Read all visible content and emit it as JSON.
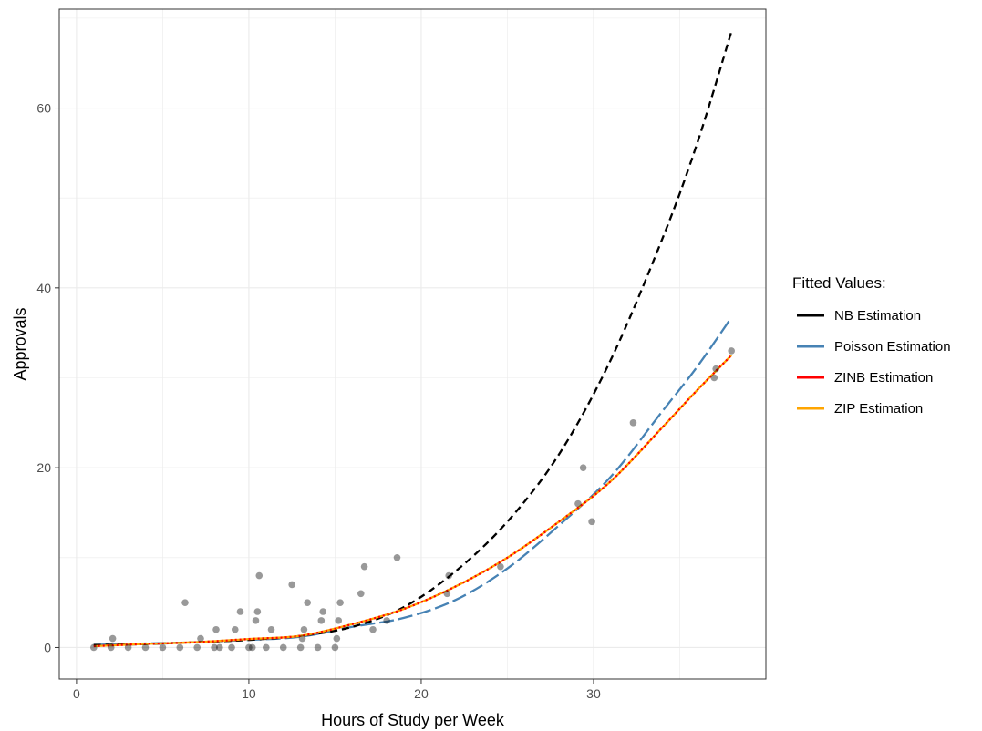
{
  "chart_data": {
    "type": "scatter",
    "xlabel": "Hours of Study per Week",
    "ylabel": "Approvals",
    "xlim": [
      -1,
      40
    ],
    "ylim": [
      -3.5,
      71
    ],
    "x_ticks": [
      0,
      10,
      20,
      30
    ],
    "y_ticks": [
      0,
      20,
      40,
      60
    ],
    "x_tick_labels": [
      "0",
      "10",
      "20",
      "30"
    ],
    "y_tick_labels": [
      "0",
      "20",
      "40",
      "60"
    ],
    "grid": true,
    "legend": {
      "title": "Fitted Values:",
      "position": "right",
      "entries": [
        {
          "name": "NB Estimation",
          "color": "#000000"
        },
        {
          "name": "Poisson Estimation",
          "color": "#4682b4"
        },
        {
          "name": "ZINB Estimation",
          "color": "#ff0000"
        },
        {
          "name": "ZIP Estimation",
          "color": "#ffa500"
        }
      ]
    },
    "points": [
      [
        1,
        0
      ],
      [
        2,
        0
      ],
      [
        2.1,
        1
      ],
      [
        3,
        0
      ],
      [
        4,
        0
      ],
      [
        5,
        0
      ],
      [
        6,
        0
      ],
      [
        6.3,
        5
      ],
      [
        7,
        0
      ],
      [
        7.2,
        1
      ],
      [
        8,
        0
      ],
      [
        8.1,
        2
      ],
      [
        8.3,
        0
      ],
      [
        9,
        0
      ],
      [
        9.5,
        4
      ],
      [
        9.2,
        2
      ],
      [
        10,
        0
      ],
      [
        10.2,
        0
      ],
      [
        10.4,
        3
      ],
      [
        10.5,
        4
      ],
      [
        10.6,
        8
      ],
      [
        11,
        0
      ],
      [
        11.3,
        2
      ],
      [
        12,
        0
      ],
      [
        12.5,
        7
      ],
      [
        13,
        0
      ],
      [
        13.1,
        1
      ],
      [
        13.2,
        2
      ],
      [
        13.4,
        5
      ],
      [
        14,
        0
      ],
      [
        14.2,
        3
      ],
      [
        14.3,
        4
      ],
      [
        15,
        0
      ],
      [
        15.1,
        1
      ],
      [
        15.2,
        3
      ],
      [
        15.3,
        5
      ],
      [
        16.5,
        6
      ],
      [
        16.7,
        9
      ],
      [
        17.2,
        2
      ],
      [
        18,
        3
      ],
      [
        18.6,
        10
      ],
      [
        21.5,
        6
      ],
      [
        21.6,
        8
      ],
      [
        24.6,
        9
      ],
      [
        29.1,
        16
      ],
      [
        29.4,
        20
      ],
      [
        29.9,
        14
      ],
      [
        32.3,
        25
      ],
      [
        37,
        30
      ],
      [
        37.1,
        31
      ],
      [
        38,
        33
      ]
    ],
    "series": [
      {
        "name": "NB Estimation",
        "color": "#000000",
        "dash": "dashed",
        "x": [
          1,
          4,
          7,
          10,
          13,
          16,
          19,
          22,
          25,
          28,
          31,
          34,
          36,
          38
        ],
        "y": [
          0.28,
          0.38,
          0.6,
          0.85,
          1.3,
          2.3,
          4.5,
          8.5,
          14.0,
          21.5,
          32.0,
          45.5,
          56.0,
          68.5
        ]
      },
      {
        "name": "Poisson Estimation",
        "color": "#4682b4",
        "dash": "longdash",
        "x": [
          1,
          4,
          7,
          10,
          13,
          16,
          19,
          22,
          25,
          28,
          31,
          34,
          36,
          38
        ],
        "y": [
          0.3,
          0.45,
          0.6,
          0.85,
          1.2,
          2.3,
          3.3,
          5.3,
          8.8,
          13.6,
          19.0,
          26.3,
          31.2,
          36.7
        ]
      },
      {
        "name": "ZINB Estimation",
        "color": "#ff0000",
        "dash": "dotted",
        "x": [
          1,
          4,
          7,
          10,
          13,
          16,
          19,
          22,
          25,
          28,
          31,
          34,
          36,
          38
        ],
        "y": [
          0.15,
          0.4,
          0.6,
          0.95,
          1.3,
          2.6,
          4.3,
          6.8,
          10.0,
          14.0,
          18.5,
          24.5,
          28.6,
          32.5
        ]
      },
      {
        "name": "ZIP Estimation",
        "color": "#ffa500",
        "dash": "solid",
        "x": [
          1,
          4,
          7,
          10,
          13,
          16,
          19,
          22,
          25,
          28,
          31,
          34,
          36,
          38
        ],
        "y": [
          0.15,
          0.4,
          0.6,
          0.95,
          1.3,
          2.6,
          4.3,
          6.8,
          10.0,
          14.0,
          18.5,
          24.5,
          28.6,
          32.5
        ]
      }
    ]
  }
}
